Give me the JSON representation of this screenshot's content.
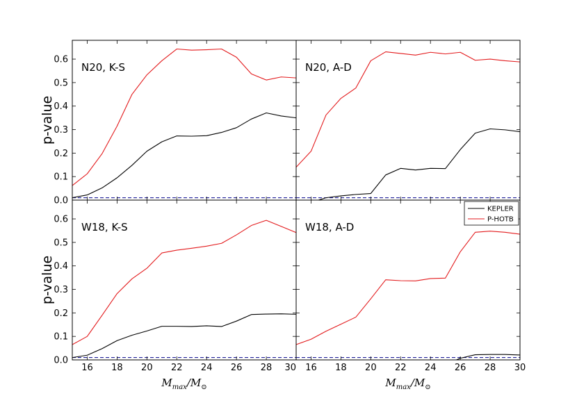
{
  "chart_data": {
    "type": "line",
    "xlabel_main": "M",
    "xlabel_sub": "max",
    "xlabel_den": "M",
    "xlabel_den_sub": "⊙",
    "ylabel": "p-value",
    "xlim": [
      15,
      30
    ],
    "xticks": [
      "16",
      "18",
      "20",
      "22",
      "24",
      "26",
      "28",
      "30"
    ],
    "ylim": [
      0,
      0.68
    ],
    "yticks": [
      "0.0",
      "0.1",
      "0.2",
      "0.3",
      "0.4",
      "0.5",
      "0.6"
    ],
    "threshold": 0.01,
    "threshold_color": "#00008b",
    "legend": {
      "placement": "top-right of lower-right panel",
      "entries": [
        {
          "name": "KEPLER",
          "color": "#000000"
        },
        {
          "name": "P-HOTB",
          "color": "#e31a1c"
        }
      ]
    },
    "x": [
      15,
      16,
      17,
      18,
      19,
      20,
      21,
      22,
      23,
      24,
      25,
      26,
      27,
      28,
      29,
      30
    ],
    "panels": [
      {
        "title": "N20, K-S",
        "series": [
          {
            "name": "KEPLER",
            "values": [
              0.01,
              0.022,
              0.052,
              0.095,
              0.148,
              0.208,
              0.248,
              0.273,
              0.272,
              0.274,
              0.288,
              0.308,
              0.345,
              0.371,
              0.358,
              0.35
            ]
          },
          {
            "name": "P-HOTB",
            "values": [
              0.062,
              0.112,
              0.198,
              0.315,
              0.45,
              0.533,
              0.593,
              0.643,
              0.638,
              0.64,
              0.643,
              0.608,
              0.537,
              0.511,
              0.524,
              0.52
            ]
          }
        ]
      },
      {
        "title": "N20, A-D",
        "series": [
          {
            "name": "KEPLER",
            "values": [
              -0.02,
              -0.01,
              0.01,
              0.018,
              0.024,
              0.028,
              0.107,
              0.135,
              0.128,
              0.135,
              0.134,
              0.215,
              0.285,
              0.303,
              0.299,
              0.291
            ]
          },
          {
            "name": "P-HOTB",
            "values": [
              0.14,
              0.208,
              0.362,
              0.433,
              0.477,
              0.593,
              0.631,
              0.624,
              0.617,
              0.629,
              0.622,
              0.629,
              0.595,
              0.6,
              0.593,
              0.588
            ]
          }
        ]
      },
      {
        "title": "W18, K-S",
        "series": [
          {
            "name": "KEPLER",
            "values": [
              0.01,
              0.02,
              0.048,
              0.082,
              0.105,
              0.123,
              0.143,
              0.143,
              0.142,
              0.145,
              0.142,
              0.165,
              0.193,
              0.195,
              0.196,
              0.194
            ]
          },
          {
            "name": "P-HOTB",
            "values": [
              0.065,
              0.1,
              0.19,
              0.282,
              0.345,
              0.39,
              0.455,
              0.467,
              0.475,
              0.484,
              0.496,
              0.532,
              0.572,
              0.594,
              0.568,
              0.542
            ]
          }
        ]
      },
      {
        "title": "W18, A-D",
        "series": [
          {
            "name": "KEPLER",
            "values": [
              -0.03,
              -0.03,
              -0.03,
              -0.03,
              -0.03,
              -0.03,
              -0.03,
              -0.03,
              -0.03,
              -0.03,
              -0.02,
              0.007,
              0.022,
              0.023,
              0.023,
              0.021
            ]
          },
          {
            "name": "P-HOTB",
            "values": [
              0.065,
              0.088,
              0.122,
              0.152,
              0.182,
              0.26,
              0.341,
              0.337,
              0.336,
              0.346,
              0.348,
              0.46,
              0.543,
              0.548,
              0.543,
              0.535
            ]
          }
        ]
      }
    ]
  }
}
